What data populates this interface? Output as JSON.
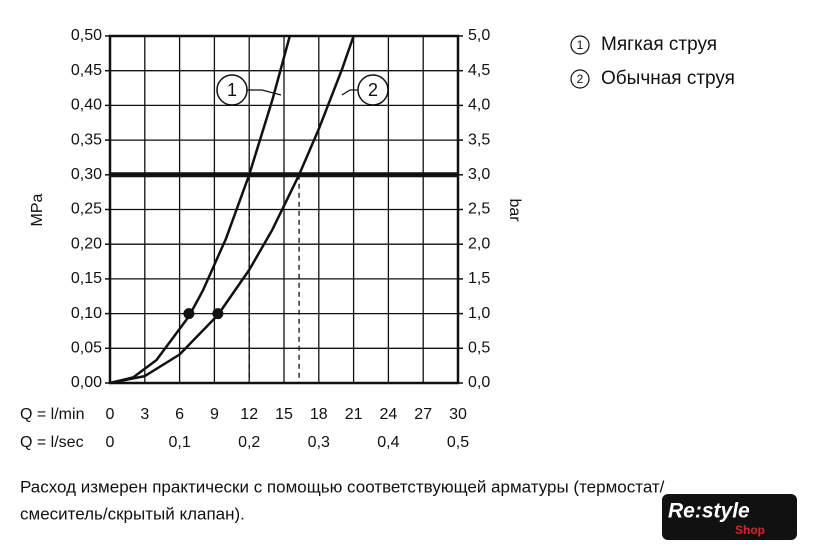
{
  "chart_data": {
    "type": "line",
    "y_label": "MPa",
    "y2_label": "bar",
    "x_label": "Q = l/min",
    "x2_label": "Q = l/sec",
    "xlim": [
      0,
      30
    ],
    "xticks": [
      0,
      3,
      6,
      9,
      12,
      15,
      18,
      21,
      24,
      27,
      30
    ],
    "x2lim": [
      0,
      0.5
    ],
    "x2ticks": [
      0,
      {
        "value": 0.1,
        "label": "0,1"
      },
      {
        "value": 0.2,
        "label": "0,2"
      },
      {
        "value": 0.3,
        "label": "0,3"
      },
      {
        "value": 0.4,
        "label": "0,4"
      },
      {
        "value": 0.5,
        "label": "0,5"
      }
    ],
    "ylim": [
      0,
      0.5
    ],
    "yticks": [
      {
        "value": 0,
        "label": "0,00"
      },
      {
        "value": 0.05,
        "label": "0,05"
      },
      {
        "value": 0.1,
        "label": "0,10"
      },
      {
        "value": 0.15,
        "label": "0,15"
      },
      {
        "value": 0.2,
        "label": "0,20"
      },
      {
        "value": 0.25,
        "label": "0,25"
      },
      {
        "value": 0.3,
        "label": "0,30"
      },
      {
        "value": 0.35,
        "label": "0,35"
      },
      {
        "value": 0.4,
        "label": "0,40"
      },
      {
        "value": 0.45,
        "label": "0,45"
      },
      {
        "value": 0.5,
        "label": "0,50"
      }
    ],
    "y2lim": [
      0,
      5
    ],
    "y2ticks": [
      {
        "value": 0,
        "label": "0,0"
      },
      {
        "value": 0.5,
        "label": "0,5"
      },
      {
        "value": 1,
        "label": "1,0"
      },
      {
        "value": 1.5,
        "label": "1,5"
      },
      {
        "value": 2,
        "label": "2,0"
      },
      {
        "value": 2.5,
        "label": "2,5"
      },
      {
        "value": 3,
        "label": "3,0"
      },
      {
        "value": 3.5,
        "label": "3,5"
      },
      {
        "value": 4,
        "label": "4,0"
      },
      {
        "value": 4.5,
        "label": "4,5"
      },
      {
        "value": 5,
        "label": "5,0"
      }
    ],
    "grid": true,
    "color": "#111111",
    "reference_line": 0.3,
    "series": [
      {
        "label": "1",
        "name": "Мягкая струя",
        "x": [
          0,
          2,
          4,
          6.8,
          8,
          10,
          12,
          14,
          15.5
        ],
        "values": [
          0,
          0.008,
          0.033,
          0.096,
          0.133,
          0.208,
          0.3,
          0.408,
          0.5
        ],
        "marker": [
          6.8,
          0.1
        ],
        "drop": [
          12,
          0.3
        ]
      },
      {
        "label": "2",
        "name": "Обычная струя",
        "x": [
          0,
          3,
          6,
          9.3,
          12,
          14,
          16.3,
          18,
          20,
          21
        ],
        "values": [
          0,
          0.01,
          0.041,
          0.098,
          0.163,
          0.221,
          0.3,
          0.366,
          0.452,
          0.5
        ],
        "marker": [
          9.3,
          0.1
        ],
        "drop": [
          16.3,
          0.3
        ]
      }
    ]
  },
  "note_lines": [
    "Расход измерен практически с помощью соответствующей арматуры (термостат/",
    "смеситель/скрытый клапан)."
  ],
  "watermark": {
    "text": "Re:style",
    "sub": "Shop"
  }
}
